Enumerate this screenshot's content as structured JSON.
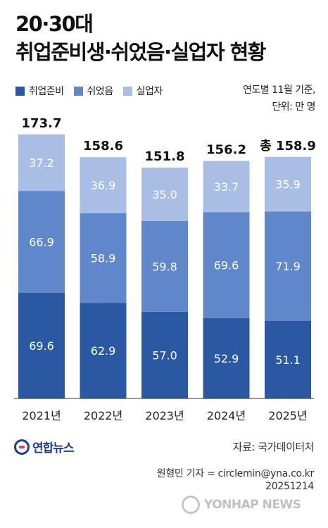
{
  "header": {
    "title_line1": "20·30대",
    "title_line2": "취업준비생·쉬었음·실업자 현황"
  },
  "meta": {
    "basis": "연도별 11월 기준,",
    "unit": "단위: 만 명"
  },
  "colors": {
    "job_prep": "#2a58a2",
    "rest": "#5f87c9",
    "unemployed": "#a9bee5",
    "text": "#111111"
  },
  "chart_data": {
    "type": "bar",
    "stacked": true,
    "categories": [
      "2021년",
      "2022년",
      "2023년",
      "2024년",
      "2025년"
    ],
    "series": [
      {
        "name": "취업준비",
        "values": [
          69.6,
          62.9,
          57.0,
          52.9,
          51.1
        ]
      },
      {
        "name": "쉬었음",
        "values": [
          66.9,
          58.9,
          59.8,
          69.6,
          71.9
        ]
      },
      {
        "name": "실업자",
        "values": [
          37.2,
          36.9,
          35.0,
          33.7,
          35.9
        ]
      }
    ],
    "totals": [
      173.7,
      158.6,
      151.8,
      156.2,
      158.9
    ],
    "total_labels": [
      "173.7",
      "158.6",
      "151.8",
      "156.2",
      "총 158.9"
    ],
    "value_labels": [
      [
        "69.6",
        "62.9",
        "57.0",
        "52.9",
        "51.1"
      ],
      [
        "66.9",
        "58.9",
        "59.8",
        "69.6",
        "71.9"
      ],
      [
        "37.2",
        "36.9",
        "35.0",
        "33.7",
        "35.9"
      ]
    ],
    "legend_position": "top-left",
    "grid": false
  },
  "footer": {
    "logo_text": "연합뉴스",
    "source": "자료: 국가데이터처",
    "credit": "원형민 기자 = circlemin@yna.co.kr",
    "date": "20251214",
    "watermark": "YONHAP NEWS"
  }
}
